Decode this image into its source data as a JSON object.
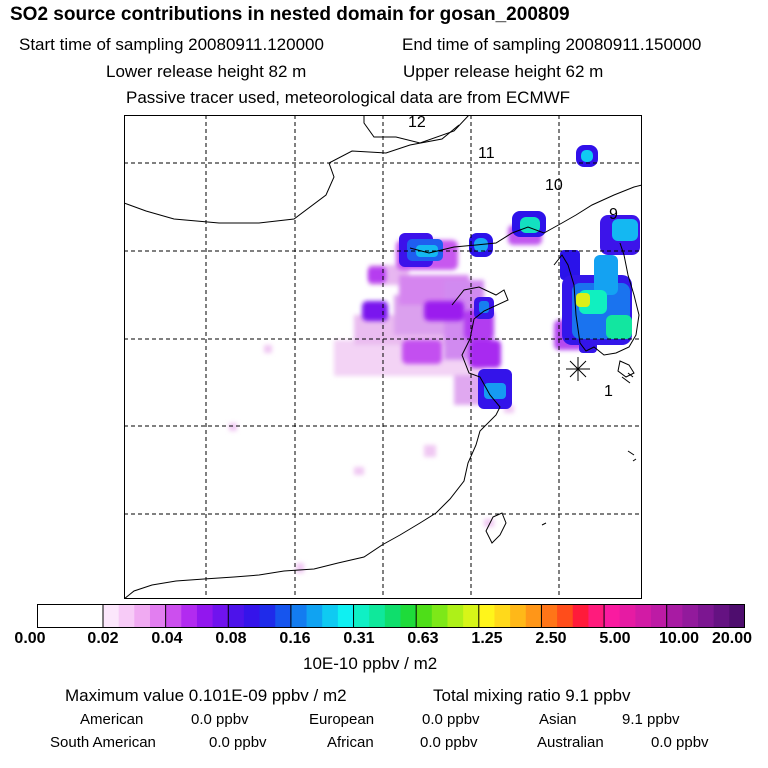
{
  "header": {
    "title": "SO2 source contributions in nested domain for gosan_200809",
    "start_time": "Start time of sampling 20080911.120000",
    "end_time": "End time of sampling 20080911.150000",
    "lower_height": "Lower release height   82 m",
    "upper_height": "Upper release height   62 m",
    "tracer_note": "Passive tracer used, meteorological data are from ECMWF"
  },
  "map": {
    "contour_labels": [
      "12",
      "11",
      "10",
      "9",
      "1"
    ],
    "receptor_marker": "asterisk",
    "gridlines": "dashed"
  },
  "colorbar": {
    "ticks": [
      "0.00",
      "0.02",
      "0.04",
      "0.08",
      "0.16",
      "0.31",
      "0.63",
      "1.25",
      "2.50",
      "5.00",
      "10.00",
      "20.00"
    ],
    "units": "10E-10 ppbv / m2",
    "colors": [
      "#ffffff",
      "#fce7fc",
      "#f7cbf7",
      "#f0aaf2",
      "#e27ef0",
      "#cc4fee",
      "#b22bf0",
      "#9217ee",
      "#7013ee",
      "#4d13ea",
      "#3514ea",
      "#1f2bea",
      "#1655ee",
      "#137cf0",
      "#10a3f2",
      "#0fcaf2",
      "#0ff0f2",
      "#0ff0c5",
      "#0fe89b",
      "#0fde6c",
      "#1edb3a",
      "#4ede18",
      "#7de818",
      "#aef018",
      "#d7f518",
      "#fff51b",
      "#ffd91b",
      "#ffb818",
      "#ff9618",
      "#ff7518",
      "#ff4d1b",
      "#ff1b3a",
      "#ff1b7c",
      "#fa1ba0",
      "#e61ba3",
      "#d21ba5",
      "#bd1ba5",
      "#a81ba3",
      "#921a9c",
      "#7c1691",
      "#651282",
      "#4e0d6e"
    ]
  },
  "summary": {
    "max_value": "Maximum value  0.101E-09 ppbv / m2",
    "total": "Total mixing ratio        9.1 ppbv",
    "american_label": "American",
    "american_value": "0.0 ppbv",
    "european_label": "European",
    "european_value": "0.0 ppbv",
    "asian_label": "Asian",
    "asian_value": "9.1 ppbv",
    "south_american_label": "South American",
    "south_american_value": "0.0 ppbv",
    "african_label": "African",
    "african_value": "0.0 ppbv",
    "australian_label": "Australian",
    "australian_value": "0.0 ppbv"
  }
}
